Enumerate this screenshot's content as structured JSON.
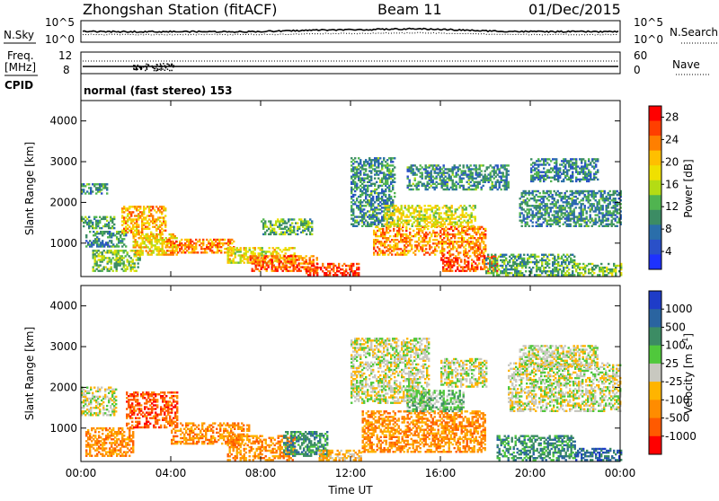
{
  "header": {
    "station": "Zhongshan Station (fitACF)",
    "beam": "Beam 11",
    "date": "01/Dec/2015"
  },
  "sky_panel": {
    "left_label": "N.Sky",
    "right_label": "N.Search",
    "ticks_left": [
      "10^5",
      "10^0"
    ],
    "ticks_right": [
      "10^5",
      "10^0"
    ]
  },
  "freq_panel": {
    "left_label_1": "Freq.",
    "left_label_2": "[MHz]",
    "cpid_label": "CPID",
    "right_label": "Nave",
    "ticks_left": [
      "12",
      "8"
    ],
    "ticks_right": [
      "60",
      "0"
    ],
    "cpid_text": "normal (fast stereo) 153"
  },
  "chart_data": [
    {
      "type": "heatmap",
      "name": "power",
      "ylabel": "Slant Range [km]",
      "ylim": [
        180,
        4500
      ],
      "yticks": [
        "4000",
        "3000",
        "2000",
        "1000"
      ],
      "xlim_hours": [
        0,
        24
      ],
      "colorbar": {
        "label": "Power [dB]",
        "ticks": [
          "28",
          "24",
          "20",
          "16",
          "12",
          "8",
          "4"
        ],
        "colors": [
          "#ff0000",
          "#ff3f00",
          "#ff7f00",
          "#ffbf00",
          "#f0e000",
          "#b4dc14",
          "#50b450",
          "#3c8c64",
          "#2a6eaa",
          "#2a50c8",
          "#1e32ff"
        ]
      },
      "echo_regions": [
        {
          "t0": 0.0,
          "t1": 1.2,
          "r0": 2200,
          "r1": 2450,
          "v": 8
        },
        {
          "t0": 0.0,
          "t1": 1.5,
          "r0": 1350,
          "r1": 1650,
          "v": 9
        },
        {
          "t0": 0.2,
          "t1": 2.0,
          "r0": 900,
          "r1": 1300,
          "v": 8
        },
        {
          "t0": 0.5,
          "t1": 2.6,
          "r0": 300,
          "r1": 800,
          "v": 12
        },
        {
          "t0": 1.8,
          "t1": 3.8,
          "r0": 1200,
          "r1": 1900,
          "v": 20
        },
        {
          "t0": 2.3,
          "t1": 4.3,
          "r0": 700,
          "r1": 1200,
          "v": 18
        },
        {
          "t0": 3.8,
          "t1": 6.8,
          "r0": 750,
          "r1": 1100,
          "v": 22
        },
        {
          "t0": 6.5,
          "t1": 9.5,
          "r0": 500,
          "r1": 900,
          "v": 17
        },
        {
          "t0": 7.5,
          "t1": 10.5,
          "r0": 300,
          "r1": 700,
          "v": 24
        },
        {
          "t0": 8.0,
          "t1": 10.3,
          "r0": 1200,
          "r1": 1600,
          "v": 11
        },
        {
          "t0": 10.0,
          "t1": 12.4,
          "r0": 200,
          "r1": 500,
          "v": 26
        },
        {
          "t0": 12.0,
          "t1": 14.0,
          "r0": 1400,
          "r1": 3100,
          "v": 8
        },
        {
          "t0": 13.0,
          "t1": 18.0,
          "r0": 700,
          "r1": 1400,
          "v": 22
        },
        {
          "t0": 13.5,
          "t1": 17.5,
          "r0": 1400,
          "r1": 1900,
          "v": 16
        },
        {
          "t0": 14.5,
          "t1": 19.0,
          "r0": 2300,
          "r1": 2900,
          "v": 8
        },
        {
          "t0": 16.0,
          "t1": 18.5,
          "r0": 300,
          "r1": 700,
          "v": 25
        },
        {
          "t0": 18.0,
          "t1": 22.0,
          "r0": 200,
          "r1": 700,
          "v": 10
        },
        {
          "t0": 19.5,
          "t1": 24.0,
          "r0": 1400,
          "r1": 2300,
          "v": 8
        },
        {
          "t0": 20.0,
          "t1": 23.0,
          "r0": 2500,
          "r1": 3050,
          "v": 7
        },
        {
          "t0": 22.0,
          "t1": 24.0,
          "r0": 200,
          "r1": 500,
          "v": 12
        }
      ]
    },
    {
      "type": "heatmap",
      "name": "velocity",
      "ylabel": "Slant Range [km]",
      "ylim": [
        180,
        4500
      ],
      "yticks": [
        "4000",
        "3000",
        "2000",
        "1000"
      ],
      "xlim_hours": [
        0,
        24
      ],
      "xticks": [
        "00:00",
        "04:00",
        "08:00",
        "12:00",
        "16:00",
        "20:00",
        "00:00"
      ],
      "xlabel": "Time UT",
      "colorbar": {
        "label": "Velocity [m s",
        "label_exp": "-1",
        "label_end": "]",
        "ticks": [
          "1000",
          "500",
          "100",
          "25",
          "-25",
          "-100",
          "-500",
          "-1000"
        ],
        "colors": [
          "#1e3cc8",
          "#2a64a0",
          "#3c8c64",
          "#50c83c",
          "#c8c8c0",
          "#ffb400",
          "#ff8c00",
          "#ff5a00",
          "#ff0000"
        ]
      },
      "echo_regions": [
        {
          "t0": 0.0,
          "t1": 1.6,
          "r0": 1300,
          "r1": 2000,
          "v": 4
        },
        {
          "t0": 0.2,
          "t1": 2.3,
          "r0": 300,
          "r1": 1000,
          "v": 6
        },
        {
          "t0": 2.0,
          "t1": 4.3,
          "r0": 1000,
          "r1": 1900,
          "v": 7
        },
        {
          "t0": 4.0,
          "t1": 7.5,
          "r0": 600,
          "r1": 1100,
          "v": 6
        },
        {
          "t0": 6.5,
          "t1": 9.5,
          "r0": 200,
          "r1": 800,
          "v": 6
        },
        {
          "t0": 9.0,
          "t1": 11.0,
          "r0": 300,
          "r1": 900,
          "v": 2
        },
        {
          "t0": 10.5,
          "t1": 12.5,
          "r0": 200,
          "r1": 450,
          "v": 5
        },
        {
          "t0": 12.0,
          "t1": 15.5,
          "r0": 1600,
          "r1": 3200,
          "v": 4
        },
        {
          "t0": 12.5,
          "t1": 18.0,
          "r0": 400,
          "r1": 1400,
          "v": 6
        },
        {
          "t0": 14.5,
          "t1": 17.0,
          "r0": 1400,
          "r1": 1900,
          "v": 3
        },
        {
          "t0": 16.0,
          "t1": 18.0,
          "r0": 2000,
          "r1": 2700,
          "v": 4
        },
        {
          "t0": 18.5,
          "t1": 22.0,
          "r0": 200,
          "r1": 800,
          "v": 2
        },
        {
          "t0": 19.0,
          "t1": 24.0,
          "r0": 1400,
          "r1": 2600,
          "v": 4
        },
        {
          "t0": 19.5,
          "t1": 23.0,
          "r0": 2500,
          "r1": 3000,
          "v": 4
        },
        {
          "t0": 22.0,
          "t1": 24.0,
          "r0": 200,
          "r1": 500,
          "v": 1
        }
      ]
    }
  ]
}
